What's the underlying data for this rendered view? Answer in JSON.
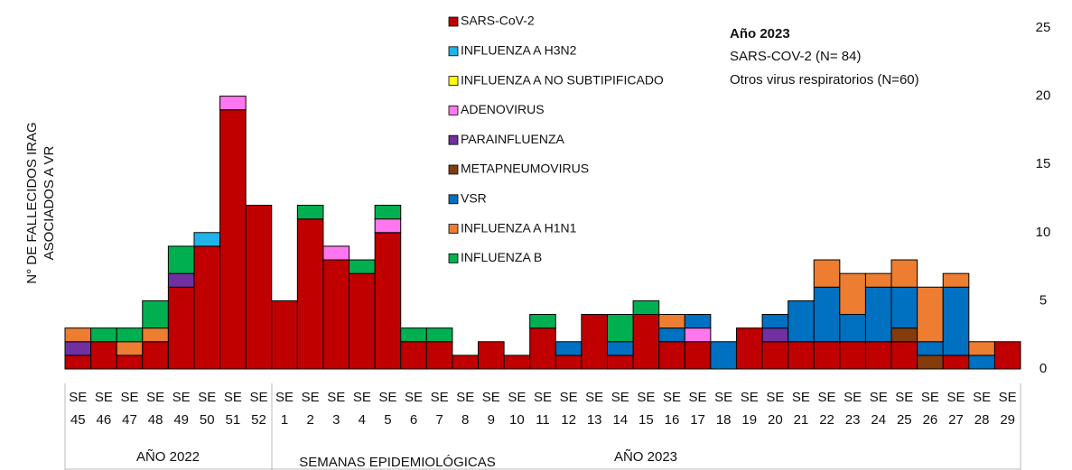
{
  "chart_data": {
    "type": "bar",
    "stacked": true,
    "ylabel": [
      "N° DE FALLECIDOS IRAG",
      "ASOCIADOS A VR"
    ],
    "xlabel": "SEMANAS EPIDEMIOLÓGICAS",
    "groups": [
      "AÑO 2022",
      "AÑO 2023"
    ],
    "annotation": [
      "Año 2023",
      "SARS-COV-2 (N= 84)",
      "Otros virus respiratorios (N=60)"
    ],
    "categories": [
      "SE 45",
      "SE 46",
      "SE 47",
      "SE 48",
      "SE 49",
      "SE 50",
      "SE 51",
      "SE 52",
      "SE 1",
      "SE 2",
      "SE 3",
      "SE 4",
      "SE 5",
      "SE 6",
      "SE 7",
      "SE 8",
      "SE 9",
      "SE 10",
      "SE 11",
      "SE 12",
      "SE 13",
      "SE 14",
      "SE 15",
      "SE 16",
      "SE 17",
      "SE 18",
      "SE 19",
      "SE 20",
      "SE 21",
      "SE 22",
      "SE 23",
      "SE 24",
      "SE 25",
      "SE 26",
      "SE 27",
      "SE 28",
      "SE 29"
    ],
    "series": [
      {
        "name": "SARS-CoV-2",
        "color": "#c00000",
        "values": [
          1,
          2,
          1,
          2,
          6,
          9,
          19,
          12,
          5,
          11,
          8,
          7,
          10,
          2,
          2,
          1,
          2,
          1,
          3,
          1,
          4,
          1,
          4,
          2,
          2,
          0,
          3,
          2,
          2,
          2,
          2,
          2,
          2,
          0,
          1,
          0,
          2
        ]
      },
      {
        "name": "INFLUENZA A H3N2",
        "color": "#1fb4e8",
        "values": [
          0,
          0,
          0,
          0,
          0,
          1,
          0,
          0,
          0,
          0,
          0,
          0,
          0,
          0,
          0,
          0,
          0,
          0,
          0,
          0,
          0,
          0,
          0,
          0,
          0,
          0,
          0,
          0,
          0,
          0,
          0,
          0,
          0,
          0,
          0,
          0,
          0
        ]
      },
      {
        "name": "INFLUENZA A NO SUBTIPIFICADO",
        "color": "#ffff00",
        "values": [
          0,
          0,
          0,
          0,
          0,
          0,
          0,
          0,
          0,
          0,
          0,
          0,
          0,
          0,
          0,
          0,
          0,
          0,
          0,
          0,
          0,
          0,
          0,
          0,
          0,
          0,
          0,
          0,
          0,
          0,
          0,
          0,
          0,
          0,
          0,
          0,
          0
        ]
      },
      {
        "name": "ADENOVIRUS",
        "color": "#ff77ee",
        "values": [
          0,
          0,
          0,
          0,
          0,
          0,
          1,
          0,
          0,
          0,
          1,
          0,
          1,
          0,
          0,
          0,
          0,
          0,
          0,
          0,
          0,
          0,
          0,
          0,
          1,
          0,
          0,
          0,
          0,
          0,
          0,
          0,
          0,
          0,
          0,
          0,
          0
        ]
      },
      {
        "name": "PARAINFLUENZA",
        "color": "#7030a0",
        "values": [
          1,
          0,
          0,
          0,
          1,
          0,
          0,
          0,
          0,
          0,
          0,
          0,
          0,
          0,
          0,
          0,
          0,
          0,
          0,
          0,
          0,
          0,
          0,
          0,
          0,
          0,
          0,
          1,
          0,
          0,
          0,
          0,
          0,
          0,
          0,
          0,
          0
        ]
      },
      {
        "name": "METAPNEUMOVIRUS",
        "color": "#843c0c",
        "values": [
          0,
          0,
          0,
          0,
          0,
          0,
          0,
          0,
          0,
          0,
          0,
          0,
          0,
          0,
          0,
          0,
          0,
          0,
          0,
          0,
          0,
          0,
          0,
          0,
          0,
          0,
          0,
          0,
          0,
          0,
          0,
          0,
          1,
          1,
          0,
          0,
          0
        ]
      },
      {
        "name": "VSR",
        "color": "#0070c0",
        "values": [
          0,
          0,
          0,
          0,
          0,
          0,
          0,
          0,
          0,
          0,
          0,
          0,
          0,
          0,
          0,
          0,
          0,
          0,
          0,
          1,
          0,
          1,
          0,
          1,
          1,
          2,
          0,
          1,
          3,
          4,
          2,
          4,
          3,
          1,
          5,
          1,
          0
        ]
      },
      {
        "name": "INFLUENZA A H1N1",
        "color": "#ed7d31",
        "values": [
          1,
          0,
          1,
          1,
          0,
          0,
          0,
          0,
          0,
          0,
          0,
          0,
          0,
          0,
          0,
          0,
          0,
          0,
          0,
          0,
          0,
          0,
          0,
          1,
          0,
          0,
          0,
          0,
          0,
          2,
          3,
          1,
          2,
          4,
          1,
          1,
          0
        ]
      },
      {
        "name": "INFLUENZA B",
        "color": "#00b050",
        "values": [
          0,
          1,
          1,
          2,
          2,
          0,
          0,
          0,
          0,
          1,
          0,
          1,
          1,
          1,
          1,
          0,
          0,
          0,
          1,
          0,
          0,
          2,
          1,
          0,
          0,
          0,
          0,
          0,
          0,
          0,
          0,
          0,
          0,
          0,
          0,
          0,
          0
        ]
      }
    ],
    "ylim": [
      0,
      25
    ],
    "yticks": [
      0,
      5,
      10,
      15,
      20,
      25
    ]
  }
}
